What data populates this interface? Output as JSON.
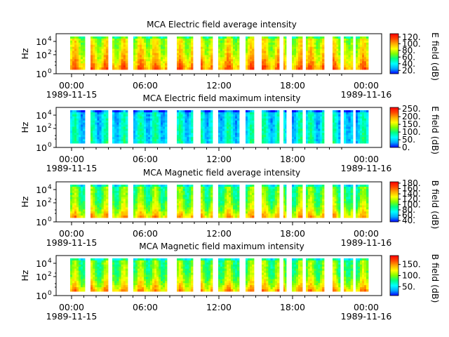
{
  "figure": {
    "x_ticks": [
      {
        "time": "00:00",
        "date": "1989-11-15"
      },
      {
        "time": "06:00",
        "date": ""
      },
      {
        "time": "12:00",
        "date": ""
      },
      {
        "time": "18:00",
        "date": ""
      },
      {
        "time": "00:00",
        "date": "1989-11-16"
      }
    ]
  },
  "chart_data": [
    {
      "type": "heatmap",
      "title": "MCA  Electric field average intensity",
      "ylabel": "Hz",
      "colorbar_label": "E field (dB)",
      "y_ticks": [
        "10",
        "10",
        "10"
      ],
      "y_tick_exponents": [
        "0",
        "2",
        "4"
      ],
      "ylim": [
        1,
        30000
      ],
      "y_scale": "log",
      "xlim": [
        "1989-11-15 00:00",
        "1989-11-16 01:00"
      ],
      "colorbar_ticks": [
        "20.",
        "40.",
        "60.",
        "80.",
        "100.",
        "120."
      ],
      "colorbar_range": [
        10,
        130
      ],
      "base_level": 0.62,
      "colormap": [
        "#0000ff",
        "#00aaff",
        "#00ffff",
        "#00ff80",
        "#80ff00",
        "#ffff00",
        "#ffaa00",
        "#ff4400",
        "#ff0000"
      ]
    },
    {
      "type": "heatmap",
      "title": "MCA  Electric field maximum intensity",
      "ylabel": "Hz",
      "colorbar_label": "E field (dB)",
      "y_ticks": [
        "10",
        "10",
        "10"
      ],
      "y_tick_exponents": [
        "0",
        "2",
        "4"
      ],
      "ylim": [
        1,
        30000
      ],
      "y_scale": "log",
      "xlim": [
        "1989-11-15 00:00",
        "1989-11-16 01:00"
      ],
      "colorbar_ticks": [
        "0.",
        "50.",
        "100.",
        "150.",
        "200.",
        "250."
      ],
      "colorbar_range": [
        0,
        260
      ],
      "base_level": 0.3,
      "colormap": [
        "#0000ff",
        "#00aaff",
        "#00ffff",
        "#00ff80",
        "#80ff00",
        "#ffff00",
        "#ffaa00",
        "#ff4400",
        "#ff0000"
      ]
    },
    {
      "type": "heatmap",
      "title": "MCA  Magnetic field average intensity",
      "ylabel": "Hz",
      "colorbar_label": "B field (dB)",
      "y_ticks": [
        "10",
        "10",
        "10"
      ],
      "y_tick_exponents": [
        "0",
        "2",
        "4"
      ],
      "ylim": [
        1,
        30000
      ],
      "y_scale": "log",
      "xlim": [
        "1989-11-15 00:00",
        "1989-11-16 01:00"
      ],
      "colorbar_ticks": [
        "40.",
        "60.",
        "80.",
        "100.",
        "120.",
        "140.",
        "160.",
        "180."
      ],
      "colorbar_range": [
        35,
        185
      ],
      "base_level": 0.45,
      "colormap": [
        "#0000ff",
        "#00aaff",
        "#00ffff",
        "#00ff80",
        "#80ff00",
        "#ffff00",
        "#ffaa00",
        "#ff4400",
        "#ff0000"
      ]
    },
    {
      "type": "heatmap",
      "title": "MCA  Magnetic field maximum intensity",
      "ylabel": "Hz",
      "colorbar_label": "B field (dB)",
      "y_ticks": [
        "10",
        "10",
        "10"
      ],
      "y_tick_exponents": [
        "0",
        "2",
        "4"
      ],
      "ylim": [
        1,
        30000
      ],
      "y_scale": "log",
      "xlim": [
        "1989-11-15 00:00",
        "1989-11-16 01:00"
      ],
      "colorbar_ticks": [
        "50.",
        "100.",
        "150."
      ],
      "colorbar_range": [
        10,
        190
      ],
      "base_level": 0.47,
      "colormap": [
        "#0000ff",
        "#00aaff",
        "#00ffff",
        "#00ff80",
        "#80ff00",
        "#ffff00",
        "#ffaa00",
        "#ff4400",
        "#ff0000"
      ]
    }
  ]
}
